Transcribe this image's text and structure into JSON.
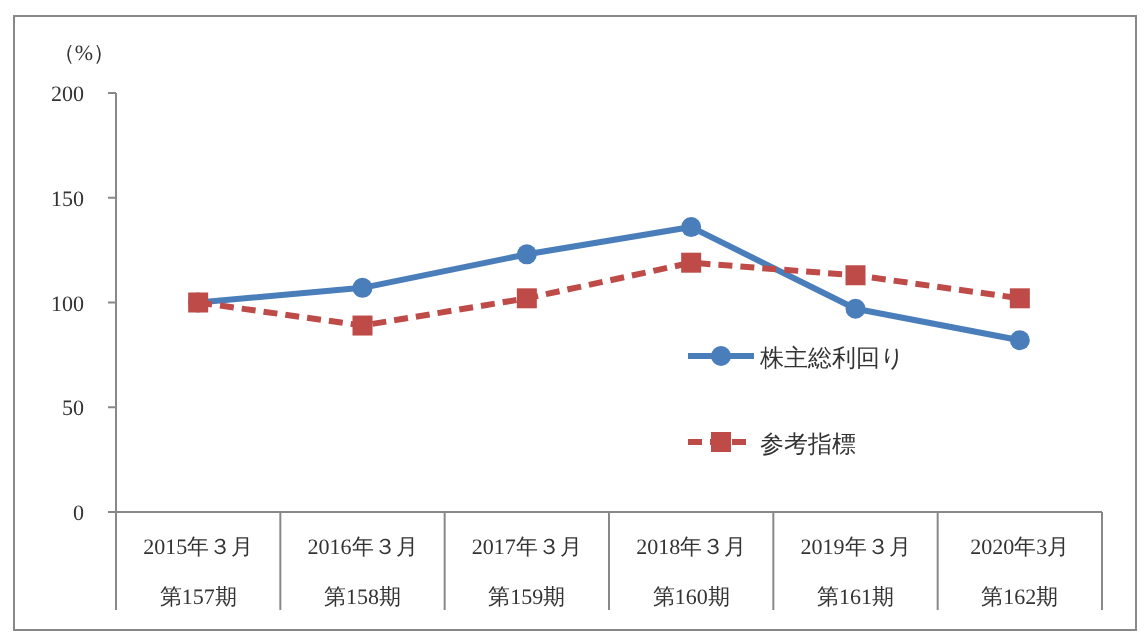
{
  "chart_data": {
    "type": "line",
    "ylabel": "（%）",
    "categories": [
      "2015年３月第157期",
      "2016年３月第158期",
      "2017年３月第159期",
      "2018年３月第160期",
      "2019年３月第161期",
      "2020年3月第162期"
    ],
    "series": [
      {
        "name": "株主総利回り",
        "color": "#4a7ebb",
        "marker": "circle",
        "line_style": "solid",
        "values": [
          100,
          107,
          123,
          136,
          97,
          82
        ]
      },
      {
        "name": "参考指標",
        "color": "#be4b48",
        "marker": "square",
        "line_style": "dashed",
        "values": [
          100,
          89,
          102,
          119,
          113,
          102
        ]
      }
    ],
    "ylim": [
      0,
      200
    ],
    "yticks": [
      0,
      50,
      100,
      150,
      200
    ],
    "legend": "right",
    "grid": false
  }
}
